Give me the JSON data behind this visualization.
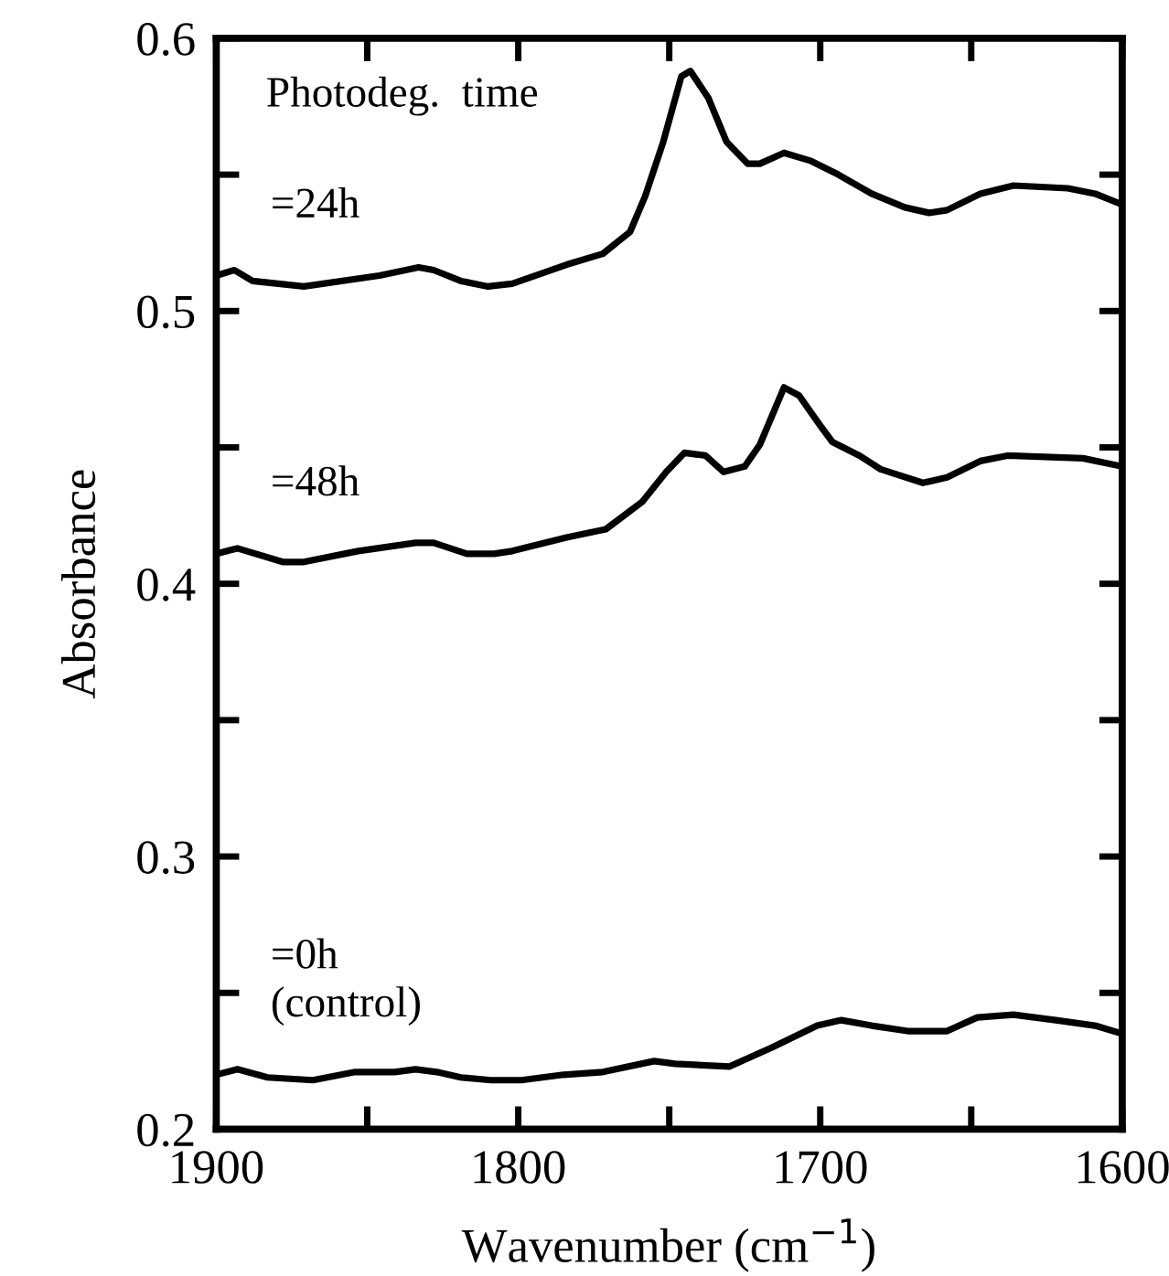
{
  "chart_data": {
    "type": "line",
    "xlabel": "Wavenumber (cm$^{−1}$)",
    "ylabel": "Absorbance",
    "annotations": [
      "Photodeg.  time"
    ],
    "xlim": [
      1900,
      1600
    ],
    "ylim": [
      0.2,
      0.6
    ],
    "xticks": [
      1900,
      {
        "value": 1850,
        "label": null
      },
      1800,
      {
        "value": 1750,
        "label": null
      },
      1700,
      {
        "value": 1650,
        "label": null
      },
      1600
    ],
    "yticks": [
      0.2,
      {
        "value": 0.25,
        "label": null
      },
      0.3,
      {
        "value": 0.35,
        "label": null
      },
      0.4,
      {
        "value": 0.45,
        "label": null
      },
      0.5,
      {
        "value": 0.55,
        "label": null
      },
      0.6
    ],
    "grid": false,
    "legend": false,
    "marker": "none",
    "line_style": "solid",
    "series": [
      {
        "name": "=24h",
        "color": "#000000",
        "x": [
          1900,
          1894,
          1888,
          1871,
          1846,
          1833,
          1828,
          1819,
          1810,
          1802,
          1784,
          1772,
          1763,
          1758,
          1752,
          1746,
          1743,
          1737,
          1731,
          1724,
          1720,
          1712,
          1703,
          1694,
          1683,
          1672,
          1664,
          1658,
          1647,
          1636,
          1618,
          1609,
          1600
        ],
        "values": [
          0.513,
          0.515,
          0.511,
          0.509,
          0.513,
          0.516,
          0.515,
          0.511,
          0.509,
          0.51,
          0.517,
          0.521,
          0.529,
          0.542,
          0.562,
          0.586,
          0.588,
          0.578,
          0.562,
          0.554,
          0.554,
          0.558,
          0.555,
          0.55,
          0.543,
          0.538,
          0.536,
          0.537,
          0.543,
          0.546,
          0.545,
          0.543,
          0.539
        ]
      },
      {
        "name": "=48h",
        "color": "#000000",
        "x": [
          1900,
          1893,
          1878,
          1871,
          1853,
          1834,
          1828,
          1817,
          1808,
          1802,
          1784,
          1771,
          1759,
          1751,
          1745,
          1738,
          1732,
          1725,
          1720,
          1712,
          1707,
          1700,
          1696,
          1687,
          1680,
          1666,
          1658,
          1647,
          1638,
          1613,
          1600
        ],
        "values": [
          0.411,
          0.413,
          0.408,
          0.408,
          0.412,
          0.415,
          0.415,
          0.411,
          0.411,
          0.412,
          0.417,
          0.42,
          0.43,
          0.441,
          0.448,
          0.447,
          0.441,
          0.443,
          0.451,
          0.472,
          0.469,
          0.458,
          0.452,
          0.447,
          0.442,
          0.437,
          0.439,
          0.445,
          0.447,
          0.446,
          0.443
        ]
      },
      {
        "name": "=0h\n(control)",
        "color": "#000000",
        "x": [
          1900,
          1893,
          1883,
          1868,
          1854,
          1841,
          1834,
          1827,
          1819,
          1809,
          1799,
          1785,
          1772,
          1755,
          1748,
          1730,
          1716,
          1701,
          1693,
          1683,
          1671,
          1658,
          1648,
          1636,
          1622,
          1609,
          1600
        ],
        "values": [
          0.22,
          0.222,
          0.219,
          0.218,
          0.221,
          0.221,
          0.222,
          0.221,
          0.219,
          0.218,
          0.218,
          0.22,
          0.221,
          0.225,
          0.224,
          0.223,
          0.23,
          0.238,
          0.24,
          0.238,
          0.236,
          0.236,
          0.241,
          0.242,
          0.24,
          0.238,
          0.235
        ]
      }
    ]
  }
}
